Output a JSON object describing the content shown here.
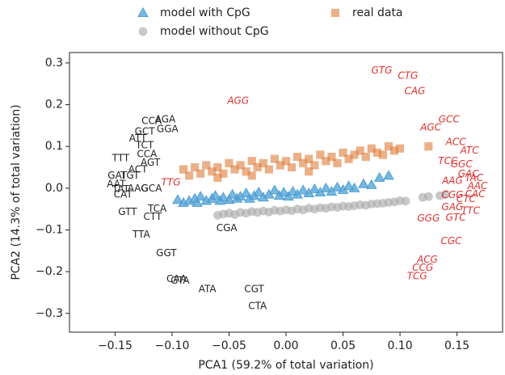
{
  "chart_data": {
    "type": "scatter",
    "xlabel": "PCA1 (59.2% of total variation)",
    "ylabel": "PCA2 (14.3% of total variation)",
    "xlim": [
      -0.19,
      0.19
    ],
    "ylim": [
      -0.345,
      0.325
    ],
    "xticks": [
      {
        "value": -0.15,
        "label": "−0.15"
      },
      {
        "value": -0.1,
        "label": "−0.10"
      },
      {
        "value": -0.05,
        "label": "−0.05"
      },
      {
        "value": 0,
        "label": "0.00"
      },
      0.05,
      {
        "value": 0.1,
        "label": "0.10"
      },
      0.15
    ],
    "yticks": [
      {
        "value": -0.3,
        "label": "−0.3"
      },
      {
        "value": -0.2,
        "label": "−0.2"
      },
      {
        "value": -0.1,
        "label": "−0.1"
      },
      {
        "value": 0,
        "label": "0.0"
      },
      0.1,
      0.2,
      0.3
    ],
    "legend": "upper center",
    "series": [
      {
        "name": "model with CpG",
        "marker": "triangle",
        "color": "#4c9fd4",
        "x": [
          -0.095,
          -0.09,
          -0.085,
          -0.08,
          -0.078,
          -0.075,
          -0.07,
          -0.065,
          -0.062,
          -0.058,
          -0.055,
          -0.05,
          -0.047,
          -0.043,
          -0.04,
          -0.035,
          -0.032,
          -0.028,
          -0.024,
          -0.02,
          -0.015,
          -0.01,
          -0.006,
          -0.002,
          0.002,
          0.006,
          0.01,
          0.015,
          0.02,
          0.025,
          0.03,
          0.035,
          0.04,
          0.045,
          0.05,
          0.055,
          0.06,
          0.068,
          0.075,
          0.082,
          0.09
        ],
        "y": [
          -0.028,
          -0.035,
          -0.03,
          -0.025,
          -0.035,
          -0.02,
          -0.03,
          -0.025,
          -0.018,
          -0.03,
          -0.022,
          -0.028,
          -0.015,
          -0.025,
          -0.02,
          -0.012,
          -0.025,
          -0.018,
          -0.01,
          -0.022,
          -0.015,
          -0.005,
          -0.018,
          -0.01,
          -0.02,
          -0.008,
          -0.015,
          -0.005,
          -0.012,
          -0.002,
          -0.01,
          0,
          -0.008,
          0.002,
          -0.004,
          0.005,
          0,
          0.01,
          0.008,
          0.025,
          0.03
        ]
      },
      {
        "name": "model without CpG",
        "marker": "circle",
        "color": "#aaaaaa",
        "x": [
          -0.06,
          -0.055,
          -0.05,
          -0.045,
          -0.04,
          -0.035,
          -0.03,
          -0.025,
          -0.02,
          -0.015,
          -0.01,
          -0.005,
          0,
          0.005,
          0.01,
          0.015,
          0.02,
          0.025,
          0.03,
          0.035,
          0.04,
          0.045,
          0.05,
          0.055,
          0.06,
          0.065,
          0.07,
          0.075,
          0.08,
          0.085,
          0.09,
          0.095,
          0.1,
          0.105,
          0.12,
          0.125,
          0.135,
          0.14
        ],
        "y": [
          -0.065,
          -0.062,
          -0.06,
          -0.063,
          -0.058,
          -0.06,
          -0.056,
          -0.058,
          -0.055,
          -0.057,
          -0.053,
          -0.055,
          -0.052,
          -0.054,
          -0.05,
          -0.052,
          -0.048,
          -0.05,
          -0.047,
          -0.048,
          -0.045,
          -0.046,
          -0.043,
          -0.044,
          -0.042,
          -0.04,
          -0.041,
          -0.038,
          -0.037,
          -0.036,
          -0.034,
          -0.033,
          -0.03,
          -0.031,
          -0.022,
          -0.02,
          -0.018,
          -0.015
        ]
      },
      {
        "name": "real data",
        "marker": "square",
        "color": "#e07b39",
        "x": [
          -0.09,
          -0.085,
          -0.08,
          -0.075,
          -0.07,
          -0.065,
          -0.06,
          -0.055,
          -0.05,
          -0.045,
          -0.04,
          -0.035,
          -0.03,
          -0.025,
          -0.02,
          -0.015,
          -0.01,
          -0.005,
          0,
          0.005,
          0.01,
          0.015,
          0.02,
          0.025,
          0.03,
          0.035,
          0.04,
          0.045,
          0.05,
          0.055,
          0.06,
          0.065,
          0.07,
          0.075,
          0.08,
          0.085,
          0.09,
          0.095,
          0.1,
          0.125,
          -0.06,
          0.02,
          -0.03
        ],
        "y": [
          0.045,
          0.03,
          0.05,
          0.035,
          0.055,
          0.04,
          0.05,
          0.035,
          0.06,
          0.045,
          0.055,
          0.04,
          0.065,
          0.05,
          0.06,
          0.045,
          0.07,
          0.055,
          0.065,
          0.05,
          0.075,
          0.06,
          0.07,
          0.055,
          0.08,
          0.065,
          0.075,
          0.06,
          0.085,
          0.07,
          0.08,
          0.09,
          0.075,
          0.095,
          0.085,
          0.08,
          0.1,
          0.09,
          0.095,
          0.1,
          0.025,
          0.04,
          0.03
        ]
      }
    ],
    "annotations": [
      {
        "text": "CCA",
        "x": -0.118,
        "y": 0.16,
        "color": "#222222"
      },
      {
        "text": "AGA",
        "x": -0.106,
        "y": 0.164,
        "color": "#222222"
      },
      {
        "text": "GCT",
        "x": -0.124,
        "y": 0.135,
        "color": "#222222"
      },
      {
        "text": "GGA",
        "x": -0.104,
        "y": 0.141,
        "color": "#222222"
      },
      {
        "text": "ATT",
        "x": -0.13,
        "y": 0.119,
        "color": "#222222"
      },
      {
        "text": "TCT",
        "x": -0.124,
        "y": 0.102,
        "color": "#222222"
      },
      {
        "text": "TTT",
        "x": -0.145,
        "y": 0.071,
        "color": "#222222"
      },
      {
        "text": "CCA",
        "x": -0.122,
        "y": 0.081,
        "color": "#222222"
      },
      {
        "text": "AGT",
        "x": -0.119,
        "y": 0.061,
        "color": "#222222"
      },
      {
        "text": "ACT",
        "x": -0.13,
        "y": 0.044,
        "color": "#222222"
      },
      {
        "text": "GAT",
        "x": -0.148,
        "y": 0.03,
        "color": "#222222"
      },
      {
        "text": "TGT",
        "x": -0.137,
        "y": 0.03,
        "color": "#222222"
      },
      {
        "text": "AAT",
        "x": -0.149,
        "y": 0.009,
        "color": "#222222"
      },
      {
        "text": "TAT",
        "x": -0.145,
        "y": -0.003,
        "color": "#222222"
      },
      {
        "text": "AAG",
        "x": -0.13,
        "y": -0.001,
        "color": "#222222"
      },
      {
        "text": "GCA",
        "x": -0.118,
        "y": -0.001,
        "color": "#222222"
      },
      {
        "text": "CAT",
        "x": -0.143,
        "y": -0.016,
        "color": "#222222"
      },
      {
        "text": "GTT",
        "x": -0.139,
        "y": -0.057,
        "color": "#222222"
      },
      {
        "text": "TCA",
        "x": -0.113,
        "y": -0.05,
        "color": "#222222"
      },
      {
        "text": "CTT",
        "x": -0.117,
        "y": -0.069,
        "color": "#222222"
      },
      {
        "text": "TTA",
        "x": -0.127,
        "y": -0.112,
        "color": "#222222"
      },
      {
        "text": "GGT",
        "x": -0.105,
        "y": -0.156,
        "color": "#222222"
      },
      {
        "text": "CAA",
        "x": -0.096,
        "y": -0.218,
        "color": "#222222"
      },
      {
        "text": "GTA",
        "x": -0.093,
        "y": -0.222,
        "color": "#222222"
      },
      {
        "text": "ATA",
        "x": -0.069,
        "y": -0.242,
        "color": "#222222"
      },
      {
        "text": "CGT",
        "x": -0.028,
        "y": -0.242,
        "color": "#222222"
      },
      {
        "text": "CGA",
        "x": -0.052,
        "y": -0.096,
        "color": "#222222"
      },
      {
        "text": "CTA",
        "x": -0.025,
        "y": -0.283,
        "color": "#222222"
      },
      {
        "text": "TTG",
        "x": -0.101,
        "y": 0.013,
        "color": "#e03030"
      },
      {
        "text": "AGG",
        "x": -0.042,
        "y": 0.209,
        "color": "#e03030"
      },
      {
        "text": "GTG",
        "x": 0.084,
        "y": 0.281,
        "color": "#e03030"
      },
      {
        "text": "CTG",
        "x": 0.107,
        "y": 0.269,
        "color": "#e03030"
      },
      {
        "text": "CAG",
        "x": 0.113,
        "y": 0.232,
        "color": "#e03030"
      },
      {
        "text": "GCC",
        "x": 0.143,
        "y": 0.164,
        "color": "#e03030"
      },
      {
        "text": "AGC",
        "x": 0.127,
        "y": 0.145,
        "color": "#e03030"
      },
      {
        "text": "ACC",
        "x": 0.149,
        "y": 0.11,
        "color": "#e03030"
      },
      {
        "text": "ATC",
        "x": 0.161,
        "y": 0.09,
        "color": "#e03030"
      },
      {
        "text": "TCC",
        "x": 0.142,
        "y": 0.065,
        "color": "#e03030"
      },
      {
        "text": "GGC",
        "x": 0.154,
        "y": 0.057,
        "color": "#e03030"
      },
      {
        "text": "GAC",
        "x": 0.16,
        "y": 0.034,
        "color": "#e03030"
      },
      {
        "text": "TAC",
        "x": 0.165,
        "y": 0.024,
        "color": "#e03030"
      },
      {
        "text": "AAG",
        "x": 0.146,
        "y": 0.017,
        "color": "#e03030"
      },
      {
        "text": "AAC",
        "x": 0.168,
        "y": 0.005,
        "color": "#e03030"
      },
      {
        "text": "CGG",
        "x": 0.146,
        "y": -0.017,
        "color": "#e03030"
      },
      {
        "text": "CAC",
        "x": 0.166,
        "y": -0.015,
        "color": "#e03030"
      },
      {
        "text": "CTC",
        "x": 0.158,
        "y": -0.026,
        "color": "#e03030"
      },
      {
        "text": "GAG",
        "x": 0.146,
        "y": -0.046,
        "color": "#e03030"
      },
      {
        "text": "TTC",
        "x": 0.162,
        "y": -0.055,
        "color": "#e03030"
      },
      {
        "text": "GGG",
        "x": 0.125,
        "y": -0.073,
        "color": "#e03030"
      },
      {
        "text": "GTC",
        "x": 0.149,
        "y": -0.071,
        "color": "#e03030"
      },
      {
        "text": "CGC",
        "x": 0.145,
        "y": -0.127,
        "color": "#e03030"
      },
      {
        "text": "ACG",
        "x": 0.124,
        "y": -0.172,
        "color": "#e03030"
      },
      {
        "text": "CCG",
        "x": 0.12,
        "y": -0.191,
        "color": "#e03030"
      },
      {
        "text": "TCG",
        "x": 0.115,
        "y": -0.211,
        "color": "#e03030"
      }
    ]
  }
}
